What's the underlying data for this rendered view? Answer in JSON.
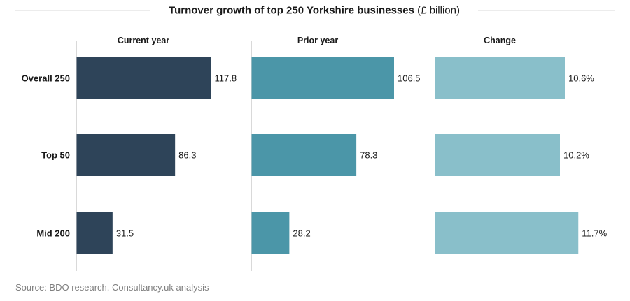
{
  "title": {
    "main": "Turnover growth of top 250 Yorkshire businesses",
    "unit": "(£ billion)"
  },
  "source": "Source: BDO research, Consultancy.uk analysis",
  "colors": {
    "current_year": "#2e4459",
    "prior_year": "#4b96a8",
    "change": "#89bfca"
  },
  "chart_data": {
    "type": "bar",
    "orientation": "horizontal",
    "title": "Turnover growth of top 250 Yorkshire businesses (£ billion)",
    "categories": [
      "Overall 250",
      "Top 50",
      "Mid 200"
    ],
    "panels": [
      {
        "name": "Current year",
        "values": [
          117.8,
          86.3,
          31.5
        ],
        "labels": [
          "117.8",
          "86.3",
          "31.5"
        ],
        "color": "#2e4459"
      },
      {
        "name": "Prior year",
        "values": [
          106.5,
          78.3,
          28.2
        ],
        "labels": [
          "106.5",
          "78.3",
          "28.2"
        ],
        "color": "#4b96a8"
      },
      {
        "name": "Change",
        "values": [
          10.6,
          10.2,
          11.7
        ],
        "labels": [
          "10.6%",
          "10.2%",
          "11.7%"
        ],
        "color": "#89bfca"
      }
    ],
    "grid": false,
    "legend": "none"
  }
}
